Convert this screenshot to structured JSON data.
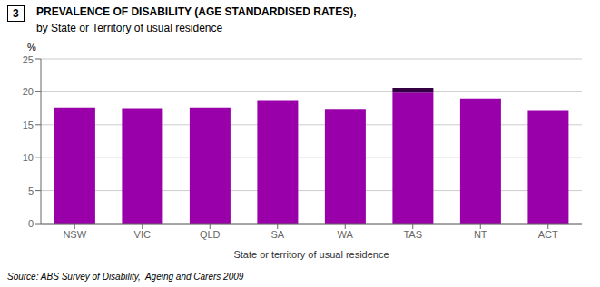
{
  "chart_data": {
    "type": "bar",
    "title": "PREVALENCE OF DISABILITY (AGE STANDARDISED RATES),",
    "subtitle": "by State or Territory of usual residence",
    "xlabel": "State or territory of usual residence",
    "ylabel": "%",
    "annotations": [
      "3",
      "Source: ABS Survey of Disability,  Ageing and Carers 2009"
    ],
    "categories": [
      "NSW",
      "VIC",
      "QLD",
      "SA",
      "WA",
      "TAS",
      "NT",
      "ACT"
    ],
    "series": [
      {
        "color": "#9900AA",
        "values": [
          17.6,
          17.5,
          17.6,
          18.6,
          17.4,
          19.9,
          19.0,
          17.1
        ]
      },
      {
        "color": "#330044",
        "values": [
          0.0,
          0.0,
          0.0,
          0.0,
          0.0,
          0.7,
          0.0,
          0.0
        ]
      }
    ],
    "stacked": true,
    "ylim": [
      0,
      25
    ],
    "yticks": [
      0,
      5,
      10,
      15,
      20,
      25
    ],
    "grid": true
  }
}
